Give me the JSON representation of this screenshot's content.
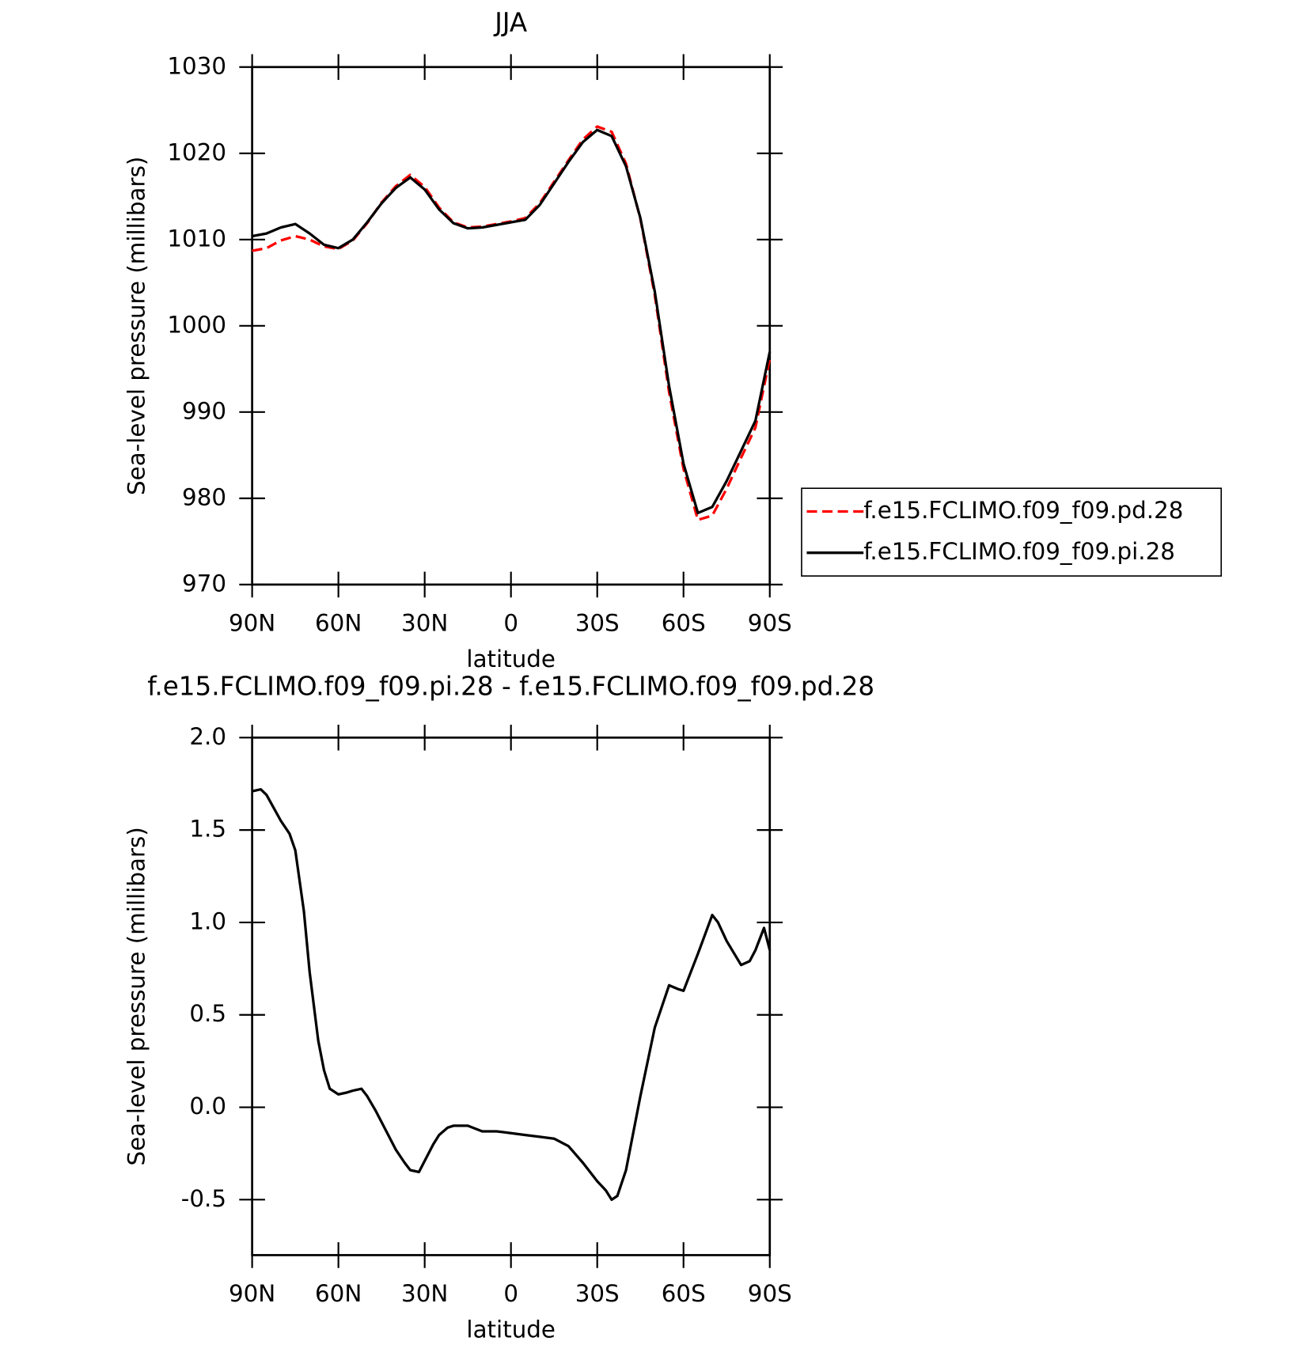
{
  "chart_data": [
    {
      "type": "line",
      "title": "JJA",
      "x_label": "latitude",
      "y_label": "Sea-level pressure (millibars)",
      "x": [
        90,
        85,
        80,
        75,
        70,
        65,
        60,
        55,
        50,
        45,
        40,
        35,
        30,
        25,
        20,
        15,
        10,
        5,
        0,
        -5,
        -10,
        -15,
        -20,
        -25,
        -30,
        -35,
        -40,
        -45,
        -50,
        -55,
        -60,
        -65,
        -70,
        -75,
        -80,
        -85,
        -90
      ],
      "series": [
        {
          "name": "f.e15.FCLIMO.f09_f09.pd.28",
          "color": "#ff0000",
          "dashed": true,
          "values": [
            1008.7,
            1009.0,
            1009.9,
            1010.4,
            1010.0,
            1009.2,
            1008.9,
            1009.9,
            1011.9,
            1014.3,
            1016.2,
            1017.5,
            1016.1,
            1013.7,
            1012.0,
            1011.4,
            1011.5,
            1011.8,
            1012.1,
            1012.5,
            1014.2,
            1016.7,
            1019.2,
            1021.6,
            1023.1,
            1022.5,
            1018.8,
            1012.4,
            1003.6,
            992.3,
            983.4,
            977.5,
            978.0,
            981.1,
            984.7,
            988.2,
            996.2
          ]
        },
        {
          "name": "f.e15.FCLIMO.f09_f09.pi.28",
          "color": "#000000",
          "dashed": false,
          "values": [
            1010.4,
            1010.7,
            1011.4,
            1011.8,
            1010.7,
            1009.4,
            1009.0,
            1010.0,
            1012.0,
            1014.2,
            1016.0,
            1017.2,
            1015.8,
            1013.5,
            1011.9,
            1011.3,
            1011.4,
            1011.7,
            1012.0,
            1012.3,
            1014.0,
            1016.5,
            1019.0,
            1021.3,
            1022.7,
            1022.0,
            1018.5,
            1012.5,
            1004.0,
            993.0,
            984.0,
            978.3,
            979.0,
            982.0,
            985.5,
            989.0,
            997.0
          ]
        }
      ],
      "xlim": [
        90,
        -90
      ],
      "xticks": [
        {
          "value": 90,
          "label": "90N"
        },
        {
          "value": 60,
          "label": "60N"
        },
        {
          "value": 30,
          "label": "30N"
        },
        0,
        {
          "value": -30,
          "label": "30S"
        },
        {
          "value": -60,
          "label": "60S"
        },
        {
          "value": -90,
          "label": "90S"
        }
      ],
      "ylim": [
        970,
        1030
      ],
      "yticks": [
        970,
        980,
        990,
        1000,
        1010,
        1020,
        1030
      ],
      "legend": "right"
    },
    {
      "type": "line",
      "title": "f.e15.FCLIMO.f09_f09.pi.28 - f.e15.FCLIMO.f09_f09.pd.28",
      "x_label": "latitude",
      "y_label": "Sea-level pressure (millibars)",
      "x": [
        90,
        87,
        85,
        80,
        77,
        75,
        72,
        70,
        67,
        65,
        63,
        60,
        57,
        55,
        52,
        50,
        47,
        45,
        42,
        40,
        37,
        35,
        32,
        30,
        27,
        25,
        22,
        20,
        15,
        10,
        5,
        0,
        -5,
        -10,
        -15,
        -20,
        -25,
        -30,
        -33,
        -35,
        -37,
        -40,
        -45,
        -50,
        -55,
        -58,
        -60,
        -65,
        -70,
        -72,
        -75,
        -80,
        -83,
        -85,
        -88,
        -90
      ],
      "values": [
        1.71,
        1.72,
        1.69,
        1.55,
        1.48,
        1.39,
        1.06,
        0.73,
        0.36,
        0.2,
        0.1,
        0.07,
        0.08,
        0.09,
        0.1,
        0.06,
        -0.02,
        -0.08,
        -0.17,
        -0.23,
        -0.3,
        -0.34,
        -0.35,
        -0.29,
        -0.2,
        -0.15,
        -0.11,
        -0.1,
        -0.1,
        -0.13,
        -0.13,
        -0.14,
        -0.15,
        -0.16,
        -0.17,
        -0.21,
        -0.3,
        -0.4,
        -0.45,
        -0.5,
        -0.48,
        -0.34,
        0.06,
        0.43,
        0.66,
        0.64,
        0.63,
        0.83,
        1.04,
        1.0,
        0.9,
        0.77,
        0.79,
        0.85,
        0.97,
        0.85
      ],
      "color": "#000000",
      "xlim": [
        90,
        -90
      ],
      "xticks": [
        {
          "value": 90,
          "label": "90N"
        },
        {
          "value": 60,
          "label": "60N"
        },
        {
          "value": 30,
          "label": "30N"
        },
        0,
        {
          "value": -30,
          "label": "30S"
        },
        {
          "value": -60,
          "label": "60S"
        },
        {
          "value": -90,
          "label": "90S"
        }
      ],
      "ylim": [
        -0.8,
        2.0
      ],
      "yticks": [
        -0.5,
        {
          "value": 0,
          "label": "0.0"
        },
        0.5,
        {
          "value": 1,
          "label": "1.0"
        },
        1.5,
        {
          "value": 2,
          "label": "2.0"
        }
      ]
    }
  ]
}
